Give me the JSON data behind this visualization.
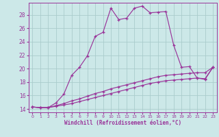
{
  "xlabel": "Windchill (Refroidissement éolien,°C)",
  "bg_color": "#cce8e8",
  "grid_color": "#aacccc",
  "line_color": "#993399",
  "xlim": [
    -0.5,
    23.5
  ],
  "ylim": [
    13.5,
    29.8
  ],
  "yticks": [
    14,
    16,
    18,
    20,
    22,
    24,
    26,
    28
  ],
  "xticks": [
    0,
    1,
    2,
    3,
    4,
    5,
    6,
    7,
    8,
    9,
    10,
    11,
    12,
    13,
    14,
    15,
    16,
    17,
    18,
    19,
    20,
    21,
    22,
    23
  ],
  "series1": [
    [
      0,
      14.3
    ],
    [
      1,
      14.2
    ],
    [
      2,
      14.2
    ],
    [
      3,
      14.9
    ],
    [
      4,
      16.2
    ],
    [
      5,
      19.0
    ],
    [
      6,
      20.2
    ],
    [
      7,
      21.9
    ],
    [
      8,
      24.8
    ],
    [
      9,
      25.4
    ],
    [
      10,
      29.0
    ],
    [
      11,
      27.3
    ],
    [
      12,
      27.5
    ],
    [
      13,
      29.0
    ],
    [
      14,
      29.3
    ],
    [
      15,
      28.3
    ],
    [
      16,
      28.4
    ],
    [
      17,
      28.5
    ],
    [
      18,
      23.5
    ],
    [
      19,
      20.2
    ],
    [
      20,
      20.3
    ],
    [
      21,
      18.6
    ],
    [
      22,
      18.4
    ],
    [
      23,
      20.2
    ]
  ],
  "series2": [
    [
      0,
      14.3
    ],
    [
      1,
      14.2
    ],
    [
      2,
      14.2
    ],
    [
      3,
      14.5
    ],
    [
      4,
      14.8
    ],
    [
      5,
      15.2
    ],
    [
      6,
      15.5
    ],
    [
      7,
      15.9
    ],
    [
      8,
      16.3
    ],
    [
      9,
      16.6
    ],
    [
      10,
      17.0
    ],
    [
      11,
      17.3
    ],
    [
      12,
      17.6
    ],
    [
      13,
      17.9
    ],
    [
      14,
      18.2
    ],
    [
      15,
      18.5
    ],
    [
      16,
      18.8
    ],
    [
      17,
      19.0
    ],
    [
      18,
      19.1
    ],
    [
      19,
      19.2
    ],
    [
      20,
      19.3
    ],
    [
      21,
      19.4
    ],
    [
      22,
      19.4
    ],
    [
      23,
      20.2
    ]
  ],
  "series3": [
    [
      0,
      14.3
    ],
    [
      1,
      14.2
    ],
    [
      2,
      14.2
    ],
    [
      3,
      14.4
    ],
    [
      4,
      14.6
    ],
    [
      5,
      14.8
    ],
    [
      6,
      15.1
    ],
    [
      7,
      15.4
    ],
    [
      8,
      15.7
    ],
    [
      9,
      16.0
    ],
    [
      10,
      16.3
    ],
    [
      11,
      16.6
    ],
    [
      12,
      16.9
    ],
    [
      13,
      17.2
    ],
    [
      14,
      17.5
    ],
    [
      15,
      17.8
    ],
    [
      16,
      18.0
    ],
    [
      17,
      18.2
    ],
    [
      18,
      18.3
    ],
    [
      19,
      18.4
    ],
    [
      20,
      18.5
    ],
    [
      21,
      18.6
    ],
    [
      22,
      18.5
    ],
    [
      23,
      20.2
    ]
  ]
}
